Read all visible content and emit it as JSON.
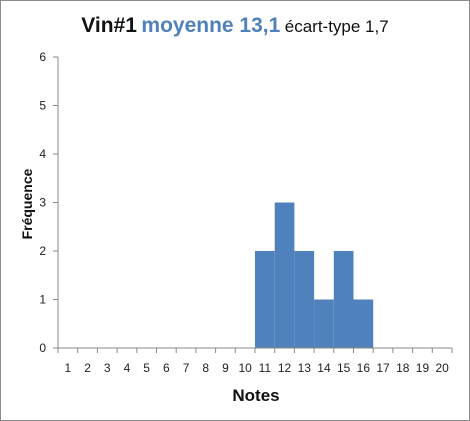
{
  "title": {
    "part1": "Vin#1",
    "part2": "moyenne 13,1",
    "part3": "écart-type 1,7"
  },
  "colors": {
    "bar": "#4f81bd",
    "axis": "#888888",
    "title_accent": "#4f81bd"
  },
  "chart_data": {
    "type": "bar",
    "xlabel": "Notes",
    "ylabel": "Fréquence",
    "ylim": [
      0,
      6
    ],
    "yticks": [
      0,
      1,
      2,
      3,
      4,
      5,
      6
    ],
    "grid": false,
    "categories": [
      "1",
      "2",
      "3",
      "4",
      "5",
      "6",
      "7",
      "8",
      "9",
      "10",
      "11",
      "12",
      "13",
      "14",
      "15",
      "16",
      "17",
      "18",
      "19",
      "20"
    ],
    "values": [
      0,
      0,
      0,
      0,
      0,
      0,
      0,
      0,
      0,
      0,
      2,
      3,
      2,
      1,
      2,
      1,
      0,
      0,
      0,
      0
    ]
  }
}
